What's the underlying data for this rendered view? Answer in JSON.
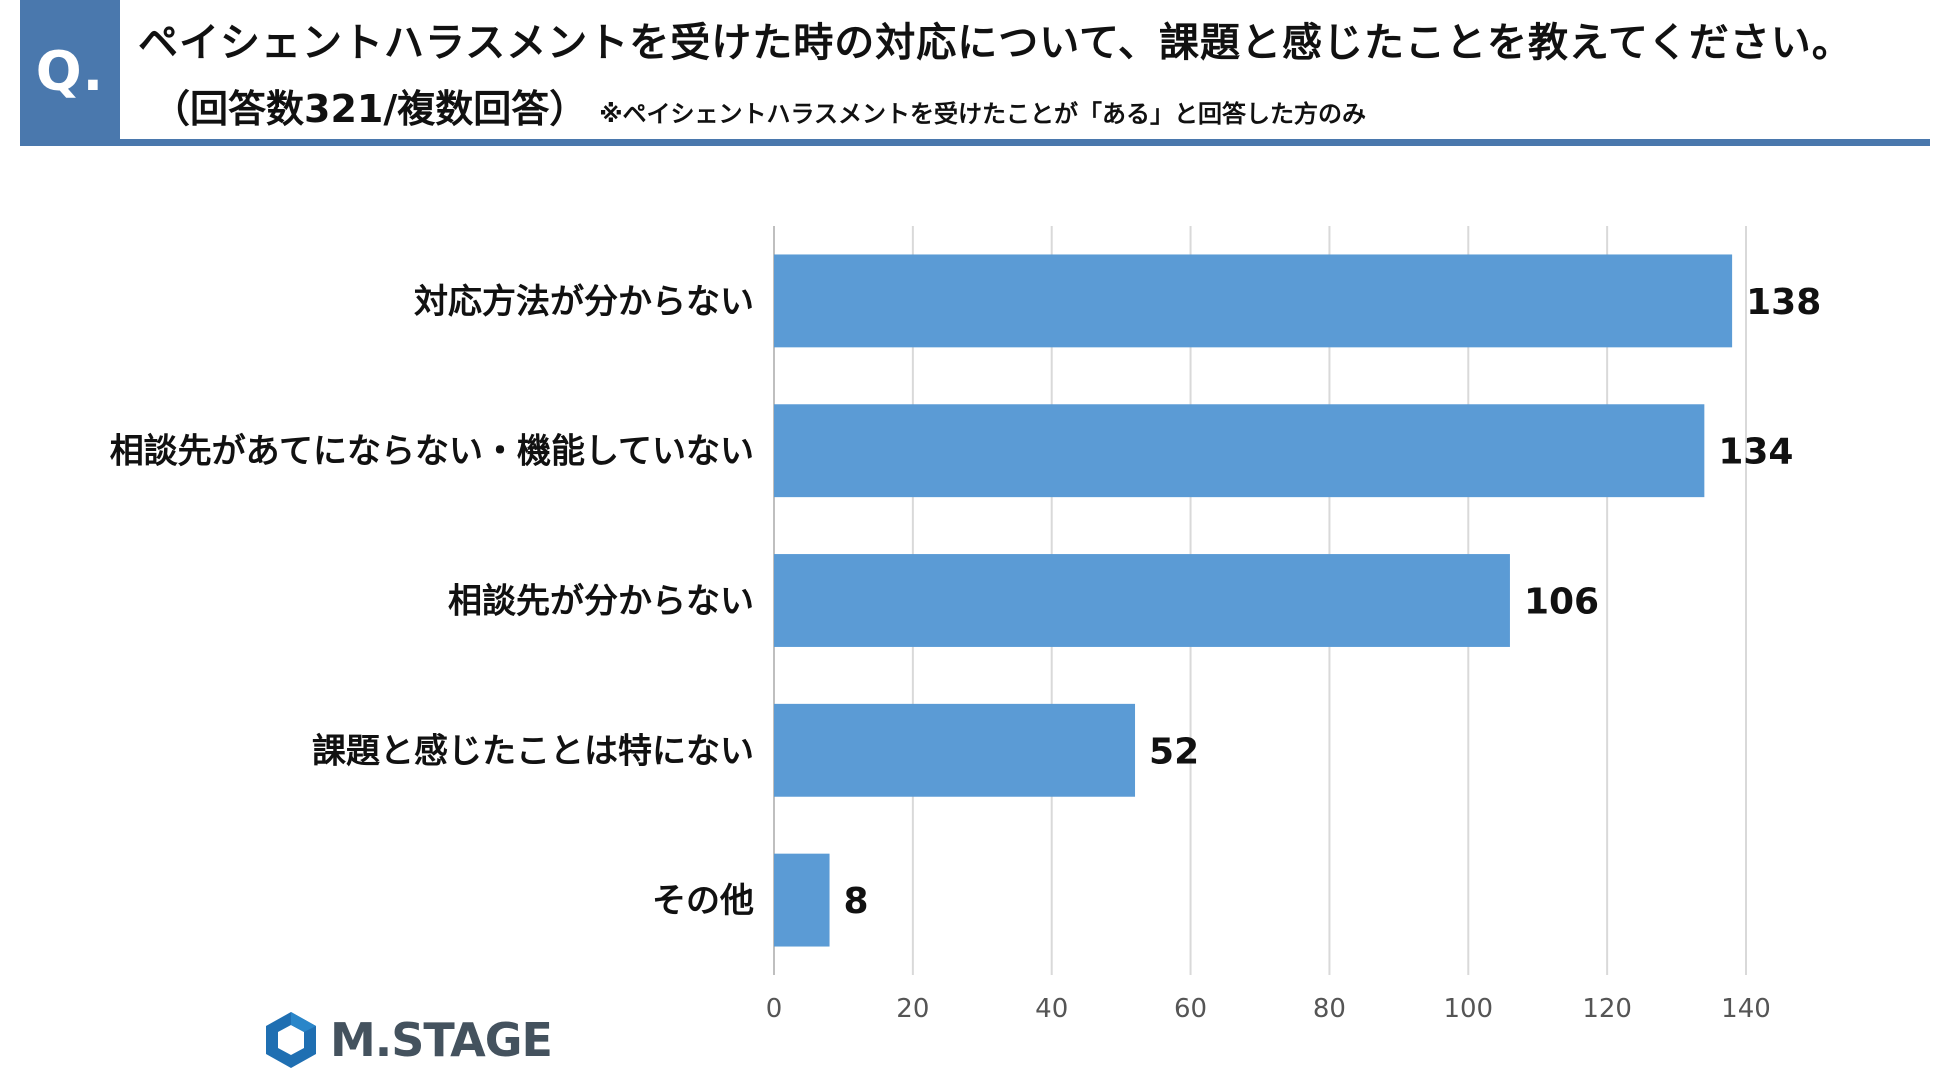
{
  "header": {
    "q_label": "Q.",
    "title": "ペイシェントハラスメントを受けた時の対応について、課題と感じたことを教えてください。",
    "count_note": "（回答数321/複数回答）",
    "sub_note": "※ペイシェントハラスメントを受けたことが「ある」と回答した方のみ",
    "accent_color": "#4a78ad"
  },
  "chart_data": {
    "type": "bar",
    "orientation": "horizontal",
    "categories": [
      "対応方法が分からない",
      "相談先があてにならない・機能していない",
      "相談先が分からない",
      "課題と感じたことは特にない",
      "その他"
    ],
    "values": [
      138,
      134,
      106,
      52,
      8
    ],
    "xlim": [
      0,
      140
    ],
    "xticks": [
      0,
      20,
      40,
      60,
      80,
      100,
      120,
      140
    ],
    "grid": true,
    "bar_color": "#5b9bd5"
  },
  "logo": {
    "text": "M.STAGE",
    "icon": "hexagon-logo-icon",
    "colors": [
      "#1f6fb2",
      "#44525e"
    ]
  }
}
